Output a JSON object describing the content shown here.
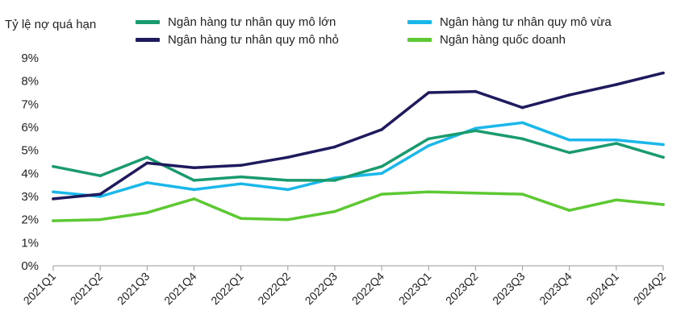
{
  "chart_data": {
    "type": "line",
    "title": "",
    "ylabel": "Tỷ lệ nợ quá hạn",
    "xlabel": "",
    "ylim": [
      0,
      9
    ],
    "y_ticks": [
      "0%",
      "1%",
      "2%",
      "3%",
      "4%",
      "5%",
      "6%",
      "7%",
      "8%",
      "9%"
    ],
    "grid": false,
    "legend_position": "top",
    "categories": [
      "2021Q1",
      "2021Q2",
      "2021Q3",
      "2021Q4",
      "2022Q1",
      "2022Q2",
      "2022Q3",
      "2022Q4",
      "2023Q1",
      "2023Q2",
      "2023Q3",
      "2023Q4",
      "2024Q1",
      "2024Q2"
    ],
    "series": [
      {
        "name": "Ngân hàng tư nhân quy mô lớn",
        "color": "#1a9b6e",
        "values": [
          4.3,
          3.9,
          4.7,
          3.7,
          3.85,
          3.7,
          3.7,
          4.3,
          5.5,
          5.85,
          5.5,
          4.9,
          5.3,
          4.7
        ]
      },
      {
        "name": "Ngân hàng tư nhân quy mô vừa",
        "color": "#1ab8ea",
        "values": [
          3.2,
          3.0,
          3.6,
          3.3,
          3.55,
          3.3,
          3.8,
          4.0,
          5.2,
          5.95,
          6.2,
          5.45,
          5.45,
          5.25
        ]
      },
      {
        "name": "Ngân hàng tư nhân quy mô nhỏ",
        "color": "#1f1a5e",
        "values": [
          2.9,
          3.1,
          4.45,
          4.25,
          4.35,
          4.7,
          5.15,
          5.9,
          7.5,
          7.55,
          6.85,
          7.4,
          7.85,
          8.35
        ]
      },
      {
        "name": "Ngân hàng quốc doanh",
        "color": "#5cc832",
        "values": [
          1.95,
          2.0,
          2.3,
          2.9,
          2.05,
          2.0,
          2.35,
          3.1,
          3.2,
          3.15,
          3.1,
          2.4,
          2.85,
          2.65
        ]
      }
    ]
  }
}
